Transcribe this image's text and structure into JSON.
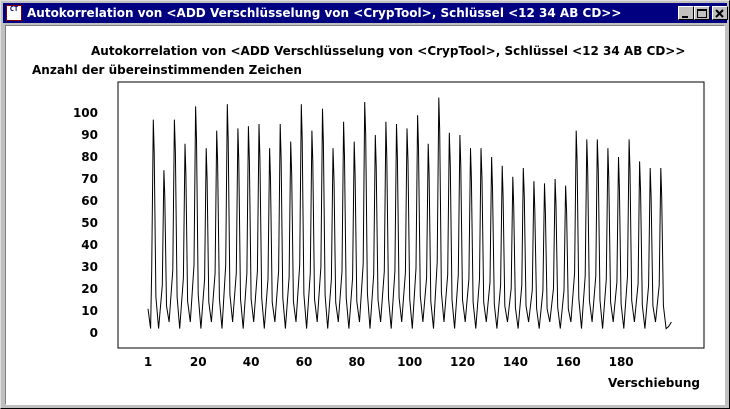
{
  "window": {
    "title": "Autokorrelation von <ADD Verschlüsselung von <CrypTool>, Schlüssel <12 34 AB CD>>",
    "icon_text": "CrypTool",
    "controls": [
      "minimize-icon",
      "maximize-icon",
      "close-icon"
    ]
  },
  "chart_data": {
    "type": "line",
    "title": "Autokorrelation von <ADD Verschlüsselung von <CrypTool>, Schlüssel <12 34 AB CD>>",
    "ylabel": "Anzahl der übereinstimmenden Zeichen",
    "xlabel": "Verschiebung",
    "xlim": [
      1,
      200
    ],
    "ylim": [
      0,
      110
    ],
    "x_ticks": [
      1,
      20,
      40,
      60,
      80,
      100,
      120,
      140,
      160,
      180
    ],
    "y_ticks": [
      0,
      10,
      20,
      30,
      40,
      50,
      60,
      70,
      80,
      90,
      100
    ],
    "grid": false,
    "line_color": "#000000",
    "series": [
      {
        "period": 4,
        "peak_start_x": 3,
        "baseline": [
          2,
          5
        ],
        "peaks": [
          97,
          74,
          97,
          86,
          103,
          84,
          92,
          104,
          93,
          94,
          95,
          84,
          95,
          87,
          104,
          92,
          102,
          84,
          96,
          87,
          105,
          90,
          96,
          95,
          93,
          99,
          86,
          107,
          91,
          90,
          84,
          84,
          80,
          76,
          71,
          75,
          69,
          68,
          70,
          67,
          92,
          88,
          88,
          84,
          80,
          88,
          78,
          75,
          75
        ],
        "secondary_peaks": [
          82,
          62,
          82,
          72,
          88,
          70,
          78,
          88,
          78,
          78,
          80,
          70,
          80,
          72,
          88,
          78,
          86,
          70,
          80,
          72,
          90,
          76,
          80,
          80,
          78,
          84,
          72,
          92,
          76,
          76,
          70,
          70,
          66,
          62,
          58,
          62,
          56,
          55,
          58,
          55,
          78,
          74,
          74,
          70,
          66,
          74,
          64,
          62,
          62
        ]
      }
    ]
  }
}
